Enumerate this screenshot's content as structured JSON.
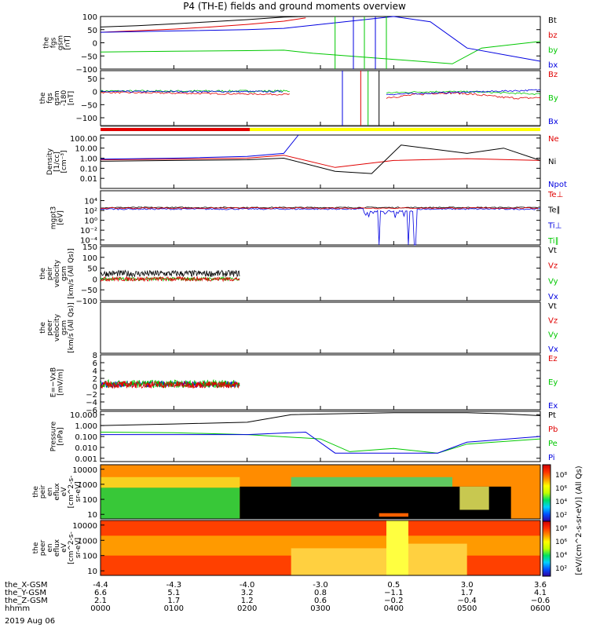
{
  "title": "P4 (TH-E) fields and ground moments overview",
  "date": "2019 Aug 06",
  "colors": {
    "black": "#000000",
    "red": "#e00000",
    "green": "#00c800",
    "blue": "#0000e0",
    "bar_red": "#e00000",
    "bar_yellow": "#ffff00"
  },
  "panels": [
    {
      "id": "fgs",
      "ylabel": [
        "the",
        "fgs",
        "gsm",
        "[nT]"
      ],
      "ylim": [
        -100,
        100
      ],
      "log": false,
      "ticks": [
        "100",
        "50",
        "0",
        "−50",
        "−100"
      ],
      "tick_values": [
        100,
        50,
        0,
        -50,
        -100
      ],
      "legend": [
        "Bt",
        "bz",
        "by",
        "bx"
      ],
      "legend_colors": [
        "black",
        "red",
        "green",
        "blue"
      ]
    },
    {
      "id": "fgs2",
      "ylabel": [
        "the",
        "fgs",
        "gsm",
        "-180",
        "[nT]"
      ],
      "ylim": [
        -130,
        80
      ],
      "log": false,
      "ticks": [
        "50",
        "0",
        "−50",
        "−100"
      ],
      "tick_values": [
        50,
        0,
        -50,
        -100
      ],
      "legend": [
        "Bz",
        "By",
        "Bx"
      ],
      "legend_colors": [
        "red",
        "green",
        "blue"
      ]
    },
    {
      "id": "density",
      "ylabel": [
        "Density",
        "[1/cc]",
        "[cm⁻³]"
      ],
      "ylim": [
        0.001,
        200
      ],
      "log": true,
      "ticks": [
        "100.00",
        "10.00",
        "1.00",
        "0.10",
        "0.01"
      ],
      "tick_values": [
        100,
        10,
        1,
        0.1,
        0.01
      ],
      "legend": [
        "Ne",
        "Ni",
        "Npot"
      ],
      "legend_colors": [
        "red",
        "black",
        "blue"
      ]
    },
    {
      "id": "temp",
      "ylabel": [
        "mgpt3",
        "[eV]"
      ],
      "ylim": [
        1e-05,
        1000000
      ],
      "log": true,
      "ticks": [
        "10⁴",
        "10²",
        "10⁰",
        "10⁻²",
        "10⁻⁴"
      ],
      "tick_values": [
        10000,
        100,
        1,
        0.01,
        0.0001
      ],
      "legend": [
        "Te⊥",
        "Te∥",
        "Ti⊥",
        "Ti∥"
      ],
      "legend_colors": [
        "red",
        "black",
        "blue",
        "green"
      ]
    },
    {
      "id": "peir_vel",
      "ylabel": [
        "the",
        "peir",
        "velocity",
        "gsm",
        "[km/s (All Qs)]"
      ],
      "ylim": [
        -100,
        150
      ],
      "log": false,
      "ticks": [
        "150",
        "100",
        "50",
        "0",
        "−50",
        "−100"
      ],
      "tick_values": [
        150,
        100,
        50,
        0,
        -50,
        -100
      ],
      "legend": [
        "Vt",
        "Vz",
        "Vy",
        "Vx"
      ],
      "legend_colors": [
        "black",
        "red",
        "green",
        "blue"
      ]
    },
    {
      "id": "peer_vel",
      "ylabel": [
        "the",
        "peer",
        "velocity",
        "gsm",
        "[km/s (All Qs)]"
      ],
      "ylim": [
        -100,
        150
      ],
      "log": false,
      "ticks": [],
      "tick_values": [],
      "legend": [
        "Vt",
        "Vz",
        "Vy",
        "Vx"
      ],
      "legend_colors": [
        "black",
        "red",
        "green",
        "blue"
      ]
    },
    {
      "id": "exb",
      "ylabel": [
        "E=−VxB",
        "[mV/m]"
      ],
      "ylim": [
        -6,
        8
      ],
      "log": false,
      "ticks": [
        "8",
        "6",
        "4",
        "2",
        "0",
        "−2",
        "−4",
        "−6"
      ],
      "tick_values": [
        8,
        6,
        4,
        2,
        0,
        -2,
        -4,
        -6
      ],
      "legend": [
        "Ez",
        "Ey",
        "Ex"
      ],
      "legend_colors": [
        "red",
        "green",
        "blue"
      ]
    },
    {
      "id": "pressure",
      "ylabel": [
        "Pressure",
        "[nPa]"
      ],
      "ylim": [
        0.0005,
        20
      ],
      "log": true,
      "ticks": [
        "10.000",
        "1.000",
        "0.100",
        "0.010",
        "0.001"
      ],
      "tick_values": [
        10,
        1,
        0.1,
        0.01,
        0.001
      ],
      "legend": [
        "Pt",
        "Pb",
        "Pe",
        "Pi"
      ],
      "legend_colors": [
        "black",
        "red",
        "green",
        "blue"
      ]
    },
    {
      "id": "peir_spec",
      "ylabel": [
        "the",
        "peir",
        "en",
        "eflux",
        "eV",
        "[cm^2-s-",
        "sr-eV]"
      ],
      "ylim": [
        5,
        20000
      ],
      "log": true,
      "ticks": [
        "10000",
        "1000",
        "100",
        "10"
      ],
      "tick_values": [
        10000,
        1000,
        100,
        10
      ],
      "legend": [],
      "legend_colors": []
    },
    {
      "id": "peer_spec",
      "ylabel": [
        "the",
        "peer",
        "en",
        "eflux",
        "eV",
        "[cm^2-s-",
        "sr-eV]"
      ],
      "ylim": [
        5,
        20000
      ],
      "log": true,
      "ticks": [
        "10000",
        "1000",
        "100",
        "10"
      ],
      "tick_values": [
        10000,
        1000,
        100,
        10
      ],
      "legend": [],
      "legend_colors": []
    }
  ],
  "colorbar": {
    "upper_ticks": [
      "10⁸",
      "10⁶",
      "10⁴",
      "10²"
    ],
    "lower_ticks": [
      "10⁸",
      "10⁶",
      "10⁴",
      "10²"
    ],
    "label": "[eV/(cm^2-s-sr-eV)] (All Qs)"
  },
  "xaxis": {
    "row_labels": [
      "the_X-GSM",
      "the_Y-GSM",
      "the_Z-GSM",
      "hhmm"
    ],
    "columns": [
      {
        "x": "-4.4",
        "y": "6.6",
        "z": "2.1",
        "t": "0000"
      },
      {
        "x": "-4.3",
        "y": "5.1",
        "z": "1.7",
        "t": "0100"
      },
      {
        "x": "-4.0",
        "y": "3.2",
        "z": "1.2",
        "t": "0200"
      },
      {
        "x": "-3.0",
        "y": "0.8",
        "z": "0.6",
        "t": "0300"
      },
      {
        "x": "0.5",
        "y": "−1.1",
        "z": "−0.2",
        "t": "0400"
      },
      {
        "x": "3.0",
        "y": "1.7",
        "z": "−0.4",
        "t": "0500"
      },
      {
        "x": "3.6",
        "y": "4.1",
        "z": "−0.6",
        "t": "0600"
      }
    ]
  },
  "chart_data": {
    "type": "line",
    "title": "P4 (TH-E) fields and ground moments overview",
    "x_unit": "hhmm",
    "time_range_hours": [
      0,
      6
    ],
    "series": [
      {
        "panel": "fgs",
        "name": "Bt",
        "x": [
          0,
          0.5,
          1,
          1.5,
          2,
          2.5,
          2.8
        ],
        "values": [
          60,
          65,
          72,
          80,
          88,
          98,
          100
        ]
      },
      {
        "panel": "fgs",
        "name": "bz",
        "x": [
          0,
          0.5,
          1,
          1.5,
          2,
          2.5,
          2.8
        ],
        "values": [
          40,
          46,
          52,
          60,
          70,
          82,
          95
        ]
      },
      {
        "panel": "fgs",
        "name": "by",
        "x": [
          0,
          1,
          2,
          2.5,
          2.9,
          4.8,
          5.2,
          6
        ],
        "values": [
          -35,
          -32,
          -30,
          -28,
          -40,
          -80,
          -20,
          5
        ]
      },
      {
        "panel": "fgs",
        "name": "bx",
        "x": [
          0,
          1,
          2,
          2.5,
          4,
          4.5,
          5,
          6
        ],
        "values": [
          40,
          45,
          50,
          55,
          100,
          80,
          -20,
          -70
        ]
      },
      {
        "panel": "density",
        "name": "Ne",
        "x": [
          0,
          1,
          2,
          2.5,
          3.2,
          4,
          5,
          6
        ],
        "values": [
          0.7,
          0.8,
          1.0,
          2.0,
          0.12,
          0.6,
          0.9,
          0.6
        ]
      },
      {
        "panel": "density",
        "name": "Ni",
        "x": [
          0,
          1,
          2,
          2.5,
          3.2,
          3.7,
          4.1,
          5,
          5.5,
          6
        ],
        "values": [
          0.5,
          0.6,
          0.7,
          1.0,
          0.05,
          0.03,
          20,
          3,
          10,
          0.6
        ]
      },
      {
        "panel": "density",
        "name": "Npot",
        "x": [
          0,
          1,
          2,
          2.5,
          2.7
        ],
        "values": [
          0.8,
          1.0,
          1.5,
          3,
          200
        ]
      },
      {
        "panel": "pressure",
        "name": "Pt",
        "x": [
          0,
          1,
          2,
          2.6,
          4,
          5,
          5.5,
          6
        ],
        "values": [
          1.0,
          1.4,
          2.0,
          10,
          15,
          15,
          12,
          8
        ]
      },
      {
        "panel": "pressure",
        "name": "Pe",
        "x": [
          0,
          1,
          2,
          3,
          3.4,
          4,
          4.6,
          5,
          6
        ],
        "values": [
          0.25,
          0.22,
          0.15,
          0.06,
          0.004,
          0.008,
          0.003,
          0.02,
          0.06
        ]
      },
      {
        "panel": "pressure",
        "name": "Pi",
        "x": [
          0,
          1,
          2,
          2.8,
          3.2,
          4,
          4.6,
          5,
          6
        ],
        "values": [
          0.15,
          0.15,
          0.15,
          0.25,
          0.003,
          0.003,
          0.003,
          0.03,
          0.1
        ]
      }
    ]
  }
}
